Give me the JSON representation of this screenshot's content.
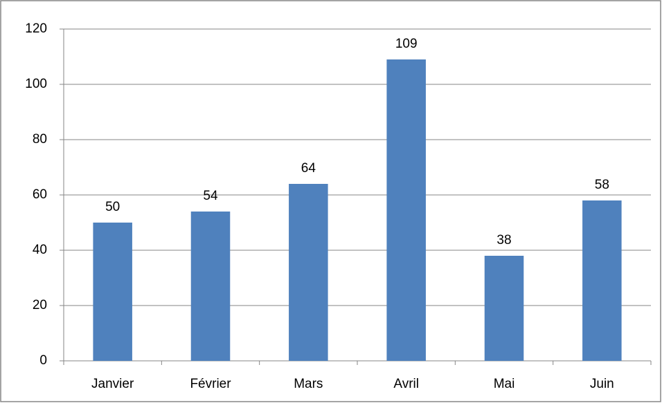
{
  "chart_data": {
    "type": "bar",
    "categories": [
      "Janvier",
      "Février",
      "Mars",
      "Avril",
      "Mai",
      "Juin"
    ],
    "values": [
      50,
      54,
      64,
      109,
      38,
      58
    ],
    "color": "#4f81bd",
    "ylim": [
      0,
      120
    ],
    "yticks": [
      0,
      20,
      40,
      60,
      80,
      100,
      120
    ],
    "grid": true
  }
}
